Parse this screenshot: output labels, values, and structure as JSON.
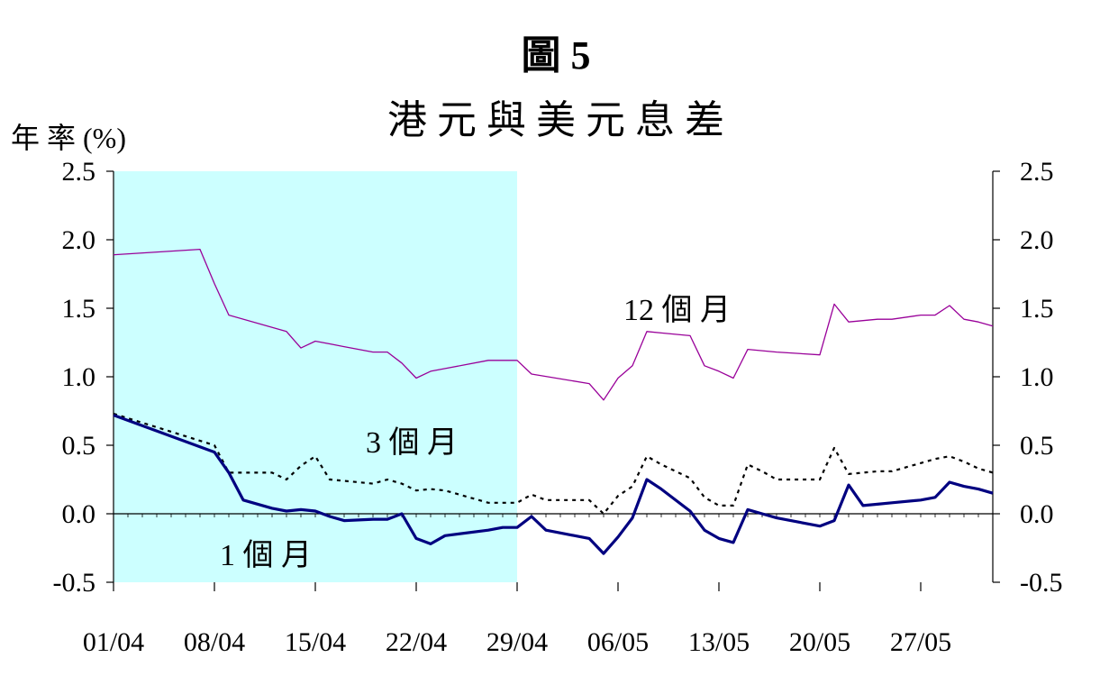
{
  "chart_data": {
    "type": "line",
    "title": "圖 5",
    "subtitle": "港 元 與 美 元 息 差",
    "ylabel": "年 率 (%)",
    "ylim": [
      -0.5,
      2.5
    ],
    "yticks": [
      "2.5",
      "2.0",
      "1.5",
      "1.0",
      "0.5",
      "0.0",
      "-0.5"
    ],
    "y_right_axis": true,
    "x_ticks": [
      "01/04",
      "08/04",
      "15/04",
      "22/04",
      "29/04",
      "06/05",
      "13/05",
      "20/05",
      "27/05"
    ],
    "x_range_days": [
      0,
      61
    ],
    "shaded_region": {
      "from": 0,
      "to": 28,
      "color": "#ccffff"
    },
    "zero_line": true,
    "grid": false,
    "series": [
      {
        "name": "12 個 月",
        "color": "#990099",
        "style": "thin",
        "x": [
          0,
          6,
          7,
          8,
          12,
          13,
          14,
          15,
          16,
          18,
          19,
          20,
          21,
          22,
          23,
          26,
          27,
          28,
          29,
          33,
          34,
          35,
          36,
          37,
          38,
          40,
          41,
          42,
          43,
          44,
          45,
          46,
          49,
          50,
          51,
          52,
          53,
          54,
          56,
          57,
          58,
          59,
          60,
          61
        ],
        "values": [
          1.89,
          1.93,
          1.68,
          1.45,
          1.33,
          1.21,
          1.26,
          1.24,
          1.22,
          1.18,
          1.18,
          1.1,
          0.99,
          1.04,
          1.06,
          1.12,
          1.12,
          1.12,
          1.02,
          0.95,
          0.83,
          0.99,
          1.08,
          1.33,
          1.32,
          1.3,
          1.08,
          1.04,
          0.99,
          1.2,
          1.19,
          1.18,
          1.16,
          1.53,
          1.4,
          1.41,
          1.42,
          1.42,
          1.45,
          1.45,
          1.52,
          1.42,
          1.4,
          1.37
        ]
      },
      {
        "name": "3 個 月",
        "color": "#000000",
        "style": "dotted",
        "x": [
          0,
          7,
          8,
          9,
          11,
          12,
          13,
          14,
          15,
          16,
          18,
          19,
          20,
          21,
          22,
          23,
          26,
          27,
          28,
          29,
          30,
          33,
          34,
          35,
          36,
          37,
          38,
          40,
          41,
          42,
          43,
          44,
          45,
          46,
          49,
          50,
          51,
          52,
          53,
          54,
          56,
          57,
          58,
          59,
          60,
          61
        ],
        "values": [
          0.73,
          0.5,
          0.3,
          0.3,
          0.3,
          0.25,
          0.35,
          0.42,
          0.25,
          0.24,
          0.22,
          0.25,
          0.22,
          0.17,
          0.18,
          0.17,
          0.08,
          0.08,
          0.08,
          0.14,
          0.1,
          0.1,
          0.0,
          0.13,
          0.2,
          0.42,
          0.36,
          0.26,
          0.12,
          0.06,
          0.06,
          0.36,
          0.31,
          0.25,
          0.25,
          0.48,
          0.29,
          0.3,
          0.31,
          0.31,
          0.37,
          0.4,
          0.42,
          0.38,
          0.33,
          0.3
        ]
      },
      {
        "name": "1 個 月",
        "color": "#000080",
        "style": "thick",
        "x": [
          0,
          7,
          8,
          9,
          11,
          12,
          13,
          14,
          15,
          16,
          18,
          19,
          20,
          21,
          22,
          23,
          26,
          27,
          28,
          29,
          30,
          33,
          34,
          35,
          36,
          37,
          38,
          40,
          41,
          42,
          43,
          44,
          45,
          46,
          49,
          50,
          51,
          52,
          53,
          54,
          56,
          57,
          58,
          59,
          60,
          61
        ],
        "values": [
          0.72,
          0.45,
          0.3,
          0.1,
          0.04,
          0.02,
          0.03,
          0.02,
          -0.02,
          -0.05,
          -0.04,
          -0.04,
          0.0,
          -0.18,
          -0.22,
          -0.16,
          -0.12,
          -0.1,
          -0.1,
          -0.02,
          -0.12,
          -0.18,
          -0.29,
          -0.17,
          -0.03,
          0.25,
          0.18,
          0.02,
          -0.12,
          -0.18,
          -0.21,
          0.03,
          0.0,
          -0.03,
          -0.09,
          -0.05,
          0.21,
          0.06,
          0.07,
          0.08,
          0.1,
          0.12,
          0.23,
          0.2,
          0.18,
          0.15
        ]
      }
    ]
  }
}
